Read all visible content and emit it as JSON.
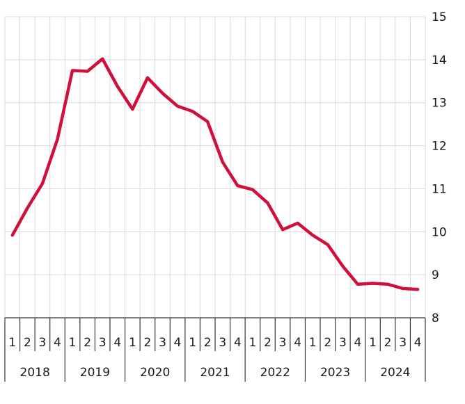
{
  "chart_data": {
    "type": "line",
    "title": "",
    "xlabel": "",
    "ylabel": "",
    "ylim": [
      8,
      15
    ],
    "yticks": [
      "8",
      "9",
      "10",
      "11",
      "12",
      "13",
      "14",
      "15"
    ],
    "y_axis_side": "right",
    "grid": true,
    "line_color": "#d0103a",
    "years": [
      "2018",
      "2019",
      "2020",
      "2021",
      "2022",
      "2023",
      "2024"
    ],
    "quarters": [
      "1",
      "2",
      "3",
      "4"
    ],
    "series": [
      {
        "values": [
          9.92,
          10.55,
          11.12,
          12.15,
          13.75,
          13.73,
          14.02,
          13.38,
          12.85,
          13.58,
          13.22,
          12.92,
          12.8,
          12.56,
          11.62,
          11.07,
          10.98,
          10.67,
          10.05,
          10.2,
          9.92,
          9.7,
          9.2,
          8.78,
          8.8,
          8.78,
          8.68,
          8.66
        ]
      }
    ]
  }
}
